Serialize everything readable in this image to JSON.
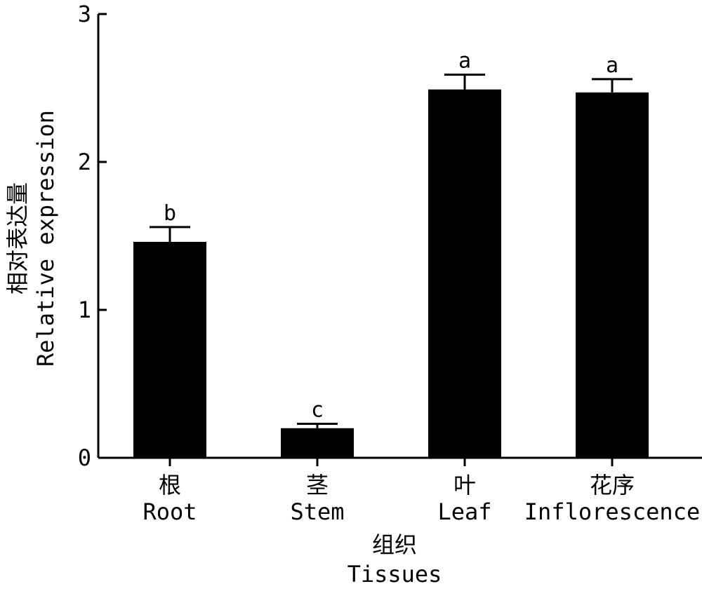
{
  "chart_data": {
    "type": "bar",
    "categories": [
      {
        "cn": "根",
        "en": "Root"
      },
      {
        "cn": "茎",
        "en": "Stem"
      },
      {
        "cn": "叶",
        "en": "Leaf"
      },
      {
        "cn": "花序",
        "en": "Inflorescence"
      }
    ],
    "values": [
      1.46,
      0.2,
      2.49,
      2.47
    ],
    "errors": [
      0.1,
      0.03,
      0.1,
      0.09
    ],
    "significance": [
      "b",
      "c",
      "a",
      "a"
    ],
    "xlabel": {
      "cn": "组织",
      "en": "Tissues"
    },
    "ylabel": {
      "cn": "相对表达量",
      "en": "Relative expression"
    },
    "ylim": [
      0,
      3
    ],
    "yticks": [
      "0",
      "1",
      "2",
      "3"
    ],
    "bar_color": "#000000",
    "grid": false
  }
}
